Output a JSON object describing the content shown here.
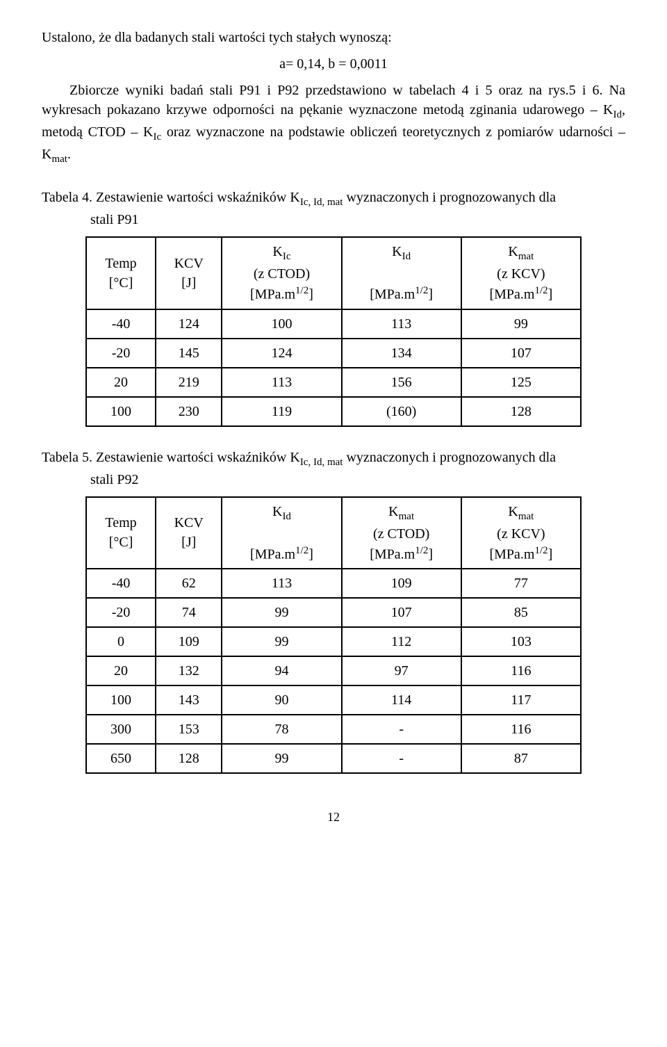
{
  "para1": "Ustalono, że dla badanych stali wartości tych stałych wynoszą:",
  "formula": "a= 0,14, b = 0,0011",
  "para2": "Zbiorcze wyniki badań stali P91 i P92 przedstawiono w tabelach 4 i 5 oraz na rys.5 i 6. Na wykresach pokazano krzywe odporności na pękanie wyznaczone metodą zginania udarowego – K_Id, metodą CTOD – K_Ic oraz wyznaczone na podstawie obliczeń teoretycznych z pomiarów udarności – K_mat.",
  "table4": {
    "caption_lead": "Tabela 4. Zestawienie wartości wskaźników K_Ic, Id, mat wyznaczonych i prognozowanych dla",
    "caption_hang": "stali P91",
    "headers": {
      "c1a": "Temp",
      "c1b": "[°C]",
      "c2a": "KCV",
      "c2b": "[J]",
      "c3a": "K_Ic",
      "c3b": "(z CTOD)",
      "c3c": "[MPa.m^1/2]",
      "c4a": "K_Id",
      "c4b": "",
      "c4c": "[MPa.m^1/2]",
      "c5a": "K_mat",
      "c5b": "(z KCV)",
      "c5c": "[MPa.m^1/2]"
    },
    "rows": [
      [
        "-40",
        "124",
        "100",
        "113",
        "99"
      ],
      [
        "-20",
        "145",
        "124",
        "134",
        "107"
      ],
      [
        "20",
        "219",
        "113",
        "156",
        "125"
      ],
      [
        "100",
        "230",
        "119",
        "(160)",
        "128"
      ]
    ]
  },
  "table5": {
    "caption_lead": "Tabela 5. Zestawienie wartości wskaźników K_Ic, Id, mat wyznaczonych i prognozowanych dla",
    "caption_hang": "stali P92",
    "headers": {
      "c1a": "Temp",
      "c1b": "[°C]",
      "c2a": "KCV",
      "c2b": "[J]",
      "c3a": "K_Id",
      "c3b": "",
      "c3c": "[MPa.m^1/2]",
      "c4a": "K_mat",
      "c4b": "(z CTOD)",
      "c4c": "[MPa.m^1/2]",
      "c5a": "K_mat",
      "c5b": "(z KCV)",
      "c5c": "[MPa.m^1/2]"
    },
    "rows": [
      [
        "-40",
        "62",
        "113",
        "109",
        "77"
      ],
      [
        "-20",
        "74",
        "99",
        "107",
        "85"
      ],
      [
        "0",
        "109",
        "99",
        "112",
        "103"
      ],
      [
        "20",
        "132",
        "94",
        "97",
        "116"
      ],
      [
        "100",
        "143",
        "90",
        "114",
        "117"
      ],
      [
        "300",
        "153",
        "78",
        "-",
        "116"
      ],
      [
        "650",
        "128",
        "99",
        "-",
        "87"
      ]
    ]
  },
  "page_number": "12"
}
